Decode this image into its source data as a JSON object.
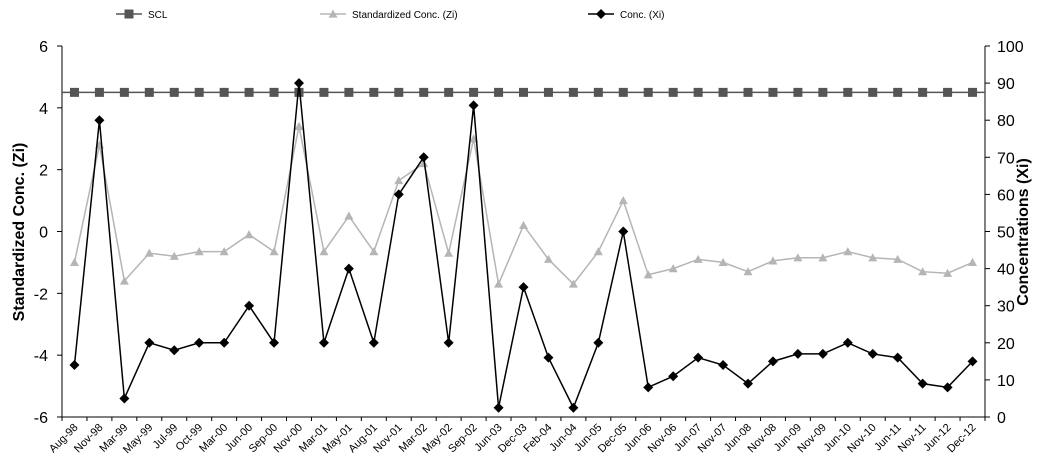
{
  "chart_data": {
    "type": "line",
    "title": "",
    "ylabel_left": "Standardized Conc. (Zi)",
    "ylabel_right": "Concentrations (Xi)",
    "ylim_left": [
      -6,
      6
    ],
    "ylim_right": [
      0,
      100
    ],
    "yticks_left": [
      "6",
      "4",
      "2",
      "0",
      "-2",
      "-4",
      "-6"
    ],
    "yticks_right": [
      "100",
      "90",
      "80",
      "70",
      "60",
      "50",
      "40",
      "30",
      "20",
      "10",
      "0"
    ],
    "grid": false,
    "legend_position": "top",
    "x": [
      "Aug-98",
      "Nov-98",
      "Mar-99",
      "May-99",
      "Jul-99",
      "Oct-99",
      "Mar-00",
      "Jun-00",
      "Sep-00",
      "Nov-00",
      "Mar-01",
      "May-01",
      "Aug-01",
      "Nov-01",
      "Mar-02",
      "May-02",
      "Sep-02",
      "Jun-03",
      "Dec-03",
      "Feb-04",
      "Jun-04",
      "Jun-05",
      "Dec-05",
      "Jun-06",
      "Nov-06",
      "Jun-07",
      "Nov-07",
      "Jun-08",
      "Nov-08",
      "Jun-09",
      "Nov-09",
      "Jun-10",
      "Nov-10",
      "Jun-11",
      "Nov-11",
      "Jun-12",
      "Dec-12"
    ],
    "series": [
      {
        "name": "SCL",
        "axis": "left",
        "color": "#555555",
        "marker": "square",
        "values": [
          4.5,
          4.5,
          4.5,
          4.5,
          4.5,
          4.5,
          4.5,
          4.5,
          4.5,
          4.5,
          4.5,
          4.5,
          4.5,
          4.5,
          4.5,
          4.5,
          4.5,
          4.5,
          4.5,
          4.5,
          4.5,
          4.5,
          4.5,
          4.5,
          4.5,
          4.5,
          4.5,
          4.5,
          4.5,
          4.5,
          4.5,
          4.5,
          4.5,
          4.5,
          4.5,
          4.5,
          4.5
        ]
      },
      {
        "name": "Standardized Conc. (Zi)",
        "axis": "left",
        "color": "#b5b5b5",
        "marker": "triangle",
        "values": [
          -1.0,
          2.8,
          -1.6,
          -0.7,
          -0.8,
          -0.65,
          -0.65,
          -0.1,
          -0.65,
          3.4,
          -0.65,
          0.5,
          -0.65,
          1.65,
          2.2,
          -0.7,
          3.0,
          -1.7,
          0.2,
          -0.9,
          -1.7,
          -0.65,
          1.0,
          -1.4,
          -1.2,
          -0.9,
          -1.0,
          -1.3,
          -0.95,
          -0.85,
          -0.85,
          -0.65,
          -0.85,
          -0.9,
          -1.3,
          -1.35,
          -1.0
        ]
      },
      {
        "name": "Conc. (Xi)",
        "axis": "right",
        "color": "#000000",
        "marker": "diamond",
        "values": [
          14,
          80,
          5,
          20,
          18,
          20,
          20,
          30,
          20,
          90,
          20,
          40,
          20,
          60,
          70,
          20,
          84,
          2.5,
          35,
          16,
          2.5,
          20,
          50,
          8,
          11,
          16,
          14,
          9,
          15,
          17,
          17,
          20,
          17,
          16,
          9,
          8,
          15
        ]
      }
    ]
  }
}
